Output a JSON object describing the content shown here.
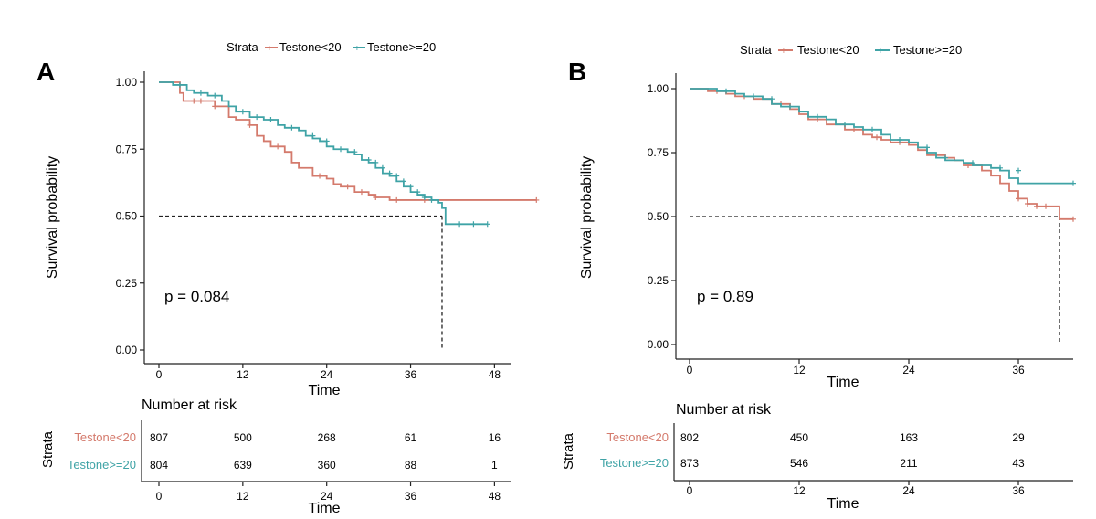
{
  "strata_label": "Strata",
  "risk_title": "Number at risk",
  "risk_strata_label": "Strata",
  "colors": {
    "low": "#d47a6c",
    "high": "#3fa3a6",
    "axis": "#222222"
  },
  "chart_data": [
    {
      "type": "line",
      "panel": "A",
      "subtype": "kaplan-meier",
      "xlabel": "Time",
      "ylabel": "Survival probability",
      "xlim": [
        0,
        52
      ],
      "ylim": [
        0,
        1
      ],
      "x_ticks": [
        0,
        12,
        24,
        36,
        48
      ],
      "y_ticks": [
        "0.00",
        "0.25",
        "0.50",
        "0.75",
        "1.00"
      ],
      "pvalue": "p = 0.084",
      "median_line": {
        "y": 0.5,
        "x": 40.5
      },
      "legend_position": "top",
      "series": [
        {
          "name": "Testone<20",
          "color": "#d47a6c",
          "points": [
            [
              0,
              1
            ],
            [
              3,
              1
            ],
            [
              3,
              0.96
            ],
            [
              3.5,
              0.93
            ],
            [
              8,
              0.91
            ],
            [
              10,
              0.87
            ],
            [
              11,
              0.86
            ],
            [
              13,
              0.84
            ],
            [
              14,
              0.8
            ],
            [
              15,
              0.78
            ],
            [
              16,
              0.76
            ],
            [
              18,
              0.74
            ],
            [
              19,
              0.7
            ],
            [
              20,
              0.68
            ],
            [
              22,
              0.65
            ],
            [
              24,
              0.64
            ],
            [
              25,
              0.62
            ],
            [
              26,
              0.61
            ],
            [
              28,
              0.59
            ],
            [
              30,
              0.58
            ],
            [
              31,
              0.57
            ],
            [
              33,
              0.56
            ],
            [
              40,
              0.56
            ],
            [
              54,
              0.56
            ]
          ],
          "censors": [
            [
              5,
              0.93
            ],
            [
              6,
              0.93
            ],
            [
              8,
              0.91
            ],
            [
              13,
              0.84
            ],
            [
              17,
              0.76
            ],
            [
              23,
              0.65
            ],
            [
              27,
              0.61
            ],
            [
              29,
              0.59
            ],
            [
              31,
              0.57
            ],
            [
              34,
              0.56
            ],
            [
              38,
              0.56
            ],
            [
              54,
              0.56
            ]
          ]
        },
        {
          "name": "Testone>=20",
          "color": "#3fa3a6",
          "points": [
            [
              0,
              1
            ],
            [
              2,
              1
            ],
            [
              2,
              0.99
            ],
            [
              4,
              0.97
            ],
            [
              5,
              0.96
            ],
            [
              7,
              0.95
            ],
            [
              9,
              0.93
            ],
            [
              10,
              0.91
            ],
            [
              11,
              0.89
            ],
            [
              13,
              0.87
            ],
            [
              15,
              0.86
            ],
            [
              17,
              0.84
            ],
            [
              18,
              0.83
            ],
            [
              20,
              0.82
            ],
            [
              21,
              0.8
            ],
            [
              22,
              0.79
            ],
            [
              23,
              0.78
            ],
            [
              24,
              0.76
            ],
            [
              25,
              0.75
            ],
            [
              27,
              0.74
            ],
            [
              28,
              0.73
            ],
            [
              29,
              0.71
            ],
            [
              30,
              0.7
            ],
            [
              31,
              0.68
            ],
            [
              32,
              0.66
            ],
            [
              33,
              0.65
            ],
            [
              34,
              0.63
            ],
            [
              35,
              0.61
            ],
            [
              36,
              0.59
            ],
            [
              37,
              0.58
            ],
            [
              38,
              0.57
            ],
            [
              39,
              0.56
            ],
            [
              40,
              0.55
            ],
            [
              40.5,
              0.53
            ],
            [
              41,
              0.5
            ],
            [
              41,
              0.47
            ],
            [
              47,
              0.47
            ]
          ],
          "censors": [
            [
              3,
              0.99
            ],
            [
              6,
              0.96
            ],
            [
              8,
              0.95
            ],
            [
              12,
              0.89
            ],
            [
              14,
              0.87
            ],
            [
              16,
              0.86
            ],
            [
              19,
              0.83
            ],
            [
              22,
              0.8
            ],
            [
              24,
              0.78
            ],
            [
              26,
              0.75
            ],
            [
              28,
              0.74
            ],
            [
              30,
              0.71
            ],
            [
              31,
              0.7
            ],
            [
              32,
              0.68
            ],
            [
              33,
              0.66
            ],
            [
              34,
              0.65
            ],
            [
              35,
              0.63
            ],
            [
              36,
              0.61
            ],
            [
              37,
              0.59
            ],
            [
              38,
              0.57
            ],
            [
              39,
              0.56
            ],
            [
              43,
              0.47
            ],
            [
              45,
              0.47
            ],
            [
              47,
              0.47
            ]
          ]
        }
      ],
      "risk_table": {
        "times": [
          0,
          12,
          24,
          36,
          48
        ],
        "rows": [
          {
            "name": "Testone<20",
            "values": [
              "807",
              "500",
              "268",
              "61",
              "16"
            ]
          },
          {
            "name": "Testone>=20",
            "values": [
              "804",
              "639",
              "360",
              "88",
              "1"
            ]
          }
        ],
        "xlim": [
          0,
          52
        ]
      }
    },
    {
      "type": "line",
      "panel": "B",
      "subtype": "kaplan-meier",
      "xlabel": "Time",
      "ylabel": "Survival probability",
      "xlim": [
        0,
        42
      ],
      "ylim": [
        0,
        1
      ],
      "x_ticks": [
        0,
        12,
        24,
        36
      ],
      "y_ticks": [
        "0.00",
        "0.25",
        "0.50",
        "0.75",
        "1.00"
      ],
      "pvalue": "p = 0.89",
      "median_line": {
        "y": 0.5,
        "x": 40.5
      },
      "legend_position": "top",
      "series": [
        {
          "name": "Testone<20",
          "color": "#d47a6c",
          "points": [
            [
              0,
              1
            ],
            [
              2,
              1
            ],
            [
              2,
              0.99
            ],
            [
              4,
              0.98
            ],
            [
              5,
              0.97
            ],
            [
              7,
              0.96
            ],
            [
              9,
              0.94
            ],
            [
              11,
              0.92
            ],
            [
              12,
              0.9
            ],
            [
              13,
              0.88
            ],
            [
              15,
              0.86
            ],
            [
              17,
              0.84
            ],
            [
              19,
              0.82
            ],
            [
              20,
              0.81
            ],
            [
              21,
              0.8
            ],
            [
              22,
              0.79
            ],
            [
              24,
              0.78
            ],
            [
              25,
              0.76
            ],
            [
              26,
              0.74
            ],
            [
              28,
              0.73
            ],
            [
              29,
              0.72
            ],
            [
              30,
              0.7
            ],
            [
              32,
              0.68
            ],
            [
              33,
              0.66
            ],
            [
              34,
              0.63
            ],
            [
              35,
              0.6
            ],
            [
              36,
              0.57
            ],
            [
              37,
              0.55
            ],
            [
              38,
              0.54
            ],
            [
              40,
              0.54
            ],
            [
              40.5,
              0.49
            ],
            [
              42,
              0.49
            ]
          ],
          "censors": [
            [
              3,
              0.99
            ],
            [
              6,
              0.97
            ],
            [
              10,
              0.94
            ],
            [
              14,
              0.88
            ],
            [
              18,
              0.84
            ],
            [
              20.5,
              0.81
            ],
            [
              23,
              0.79
            ],
            [
              27,
              0.74
            ],
            [
              30.5,
              0.7
            ],
            [
              36,
              0.57
            ],
            [
              37,
              0.55
            ],
            [
              38,
              0.54
            ],
            [
              39,
              0.54
            ],
            [
              42,
              0.49
            ]
          ]
        },
        {
          "name": "Testone>=20",
          "color": "#3fa3a6",
          "points": [
            [
              0,
              1
            ],
            [
              3,
              1
            ],
            [
              3,
              0.99
            ],
            [
              5,
              0.98
            ],
            [
              6,
              0.97
            ],
            [
              8,
              0.96
            ],
            [
              9,
              0.94
            ],
            [
              10,
              0.93
            ],
            [
              12,
              0.91
            ],
            [
              13,
              0.89
            ],
            [
              15,
              0.88
            ],
            [
              16,
              0.86
            ],
            [
              18,
              0.85
            ],
            [
              19,
              0.84
            ],
            [
              21,
              0.82
            ],
            [
              22,
              0.8
            ],
            [
              24,
              0.79
            ],
            [
              25,
              0.77
            ],
            [
              26,
              0.75
            ],
            [
              27,
              0.73
            ],
            [
              28,
              0.72
            ],
            [
              30,
              0.71
            ],
            [
              31,
              0.7
            ],
            [
              33,
              0.69
            ],
            [
              34,
              0.68
            ],
            [
              35,
              0.65
            ],
            [
              36,
              0.63
            ],
            [
              42,
              0.63
            ]
          ],
          "censors": [
            [
              4,
              0.99
            ],
            [
              7,
              0.97
            ],
            [
              9,
              0.96
            ],
            [
              11,
              0.93
            ],
            [
              14,
              0.89
            ],
            [
              17,
              0.86
            ],
            [
              20,
              0.84
            ],
            [
              23,
              0.8
            ],
            [
              26,
              0.77
            ],
            [
              28,
              0.73
            ],
            [
              31,
              0.71
            ],
            [
              34,
              0.69
            ],
            [
              36,
              0.68
            ],
            [
              42,
              0.63
            ]
          ]
        }
      ],
      "risk_table": {
        "times": [
          0,
          12,
          24,
          36
        ],
        "rows": [
          {
            "name": "Testone<20",
            "values": [
              "802",
              "450",
              "163",
              "29"
            ]
          },
          {
            "name": "Testone>=20",
            "values": [
              "873",
              "546",
              "211",
              "43"
            ]
          }
        ],
        "xlim": [
          0,
          42
        ]
      }
    }
  ]
}
